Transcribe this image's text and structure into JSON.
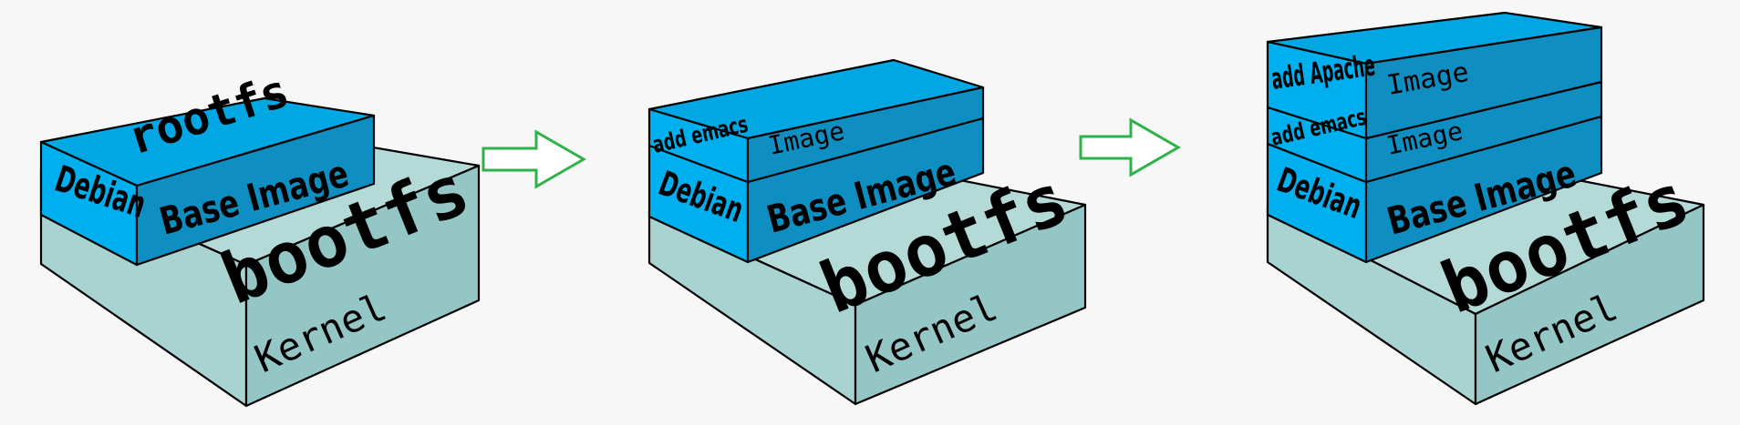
{
  "colors": {
    "kernel_top": "#b4dad8",
    "kernel_front": "#a9d3d1",
    "kernel_side": "#93c6c4",
    "layer_top": "#00a7e3",
    "layer_front": "#00b0ee",
    "layer_side": "#0f8fc1",
    "arrow_stroke": "#2eb24a"
  },
  "stages": [
    {
      "kernel": "Kernel",
      "bootfs": "bootfs",
      "debian": "Debian",
      "base_image": "Base Image",
      "rootfs": "rootfs"
    },
    {
      "kernel": "Kernel",
      "bootfs": "bootfs",
      "debian": "Debian",
      "base_image": "Base Image",
      "emacs_label": "add emacs",
      "emacs_image": "Image"
    },
    {
      "kernel": "Kernel",
      "bootfs": "bootfs",
      "debian": "Debian",
      "base_image": "Base Image",
      "emacs_label": "add emacs",
      "emacs_image": "Image",
      "apache_label": "add Apache",
      "apache_image": "Image"
    }
  ],
  "arrows": [
    "right-arrow",
    "right-arrow"
  ]
}
